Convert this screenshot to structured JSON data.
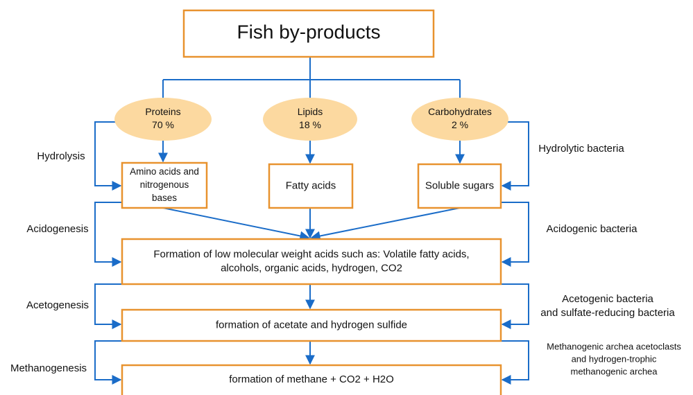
{
  "title": "Fish by-products",
  "nodes": [
    {
      "label": [
        "Proteins",
        "70 %"
      ]
    },
    {
      "label": [
        "Lipids",
        "18 %"
      ]
    },
    {
      "label": [
        "Carbohydrates",
        "2 %"
      ]
    },
    {
      "label": [
        "Amino acids and",
        "nitrogenous",
        "bases"
      ]
    },
    {
      "label": [
        "Fatty acids"
      ]
    },
    {
      "label": [
        "Soluble sugars"
      ]
    },
    {
      "label": [
        "Formation of low molecular weight acids such as: Volatile fatty acids,",
        "alcohols, organic acids, hydrogen, CO2"
      ]
    },
    {
      "label": [
        "formation of acetate and hydrogen sulfide"
      ]
    },
    {
      "label": [
        "formation of methane + CO2 + H2O"
      ]
    }
  ],
  "stages": [
    "Hydrolysis",
    "Acidogenesis",
    "Acetogenesis",
    "Methanogenesis"
  ],
  "agents": [
    [
      "Hydrolytic bacteria"
    ],
    [
      "Acidogenic bacteria"
    ],
    [
      "Acetogenic bacteria",
      "and sulfate-reducing bacteria"
    ],
    [
      "Methanogenic archea acetoclasts",
      "and hydrogen-trophic",
      "methanogenic archea"
    ]
  ]
}
